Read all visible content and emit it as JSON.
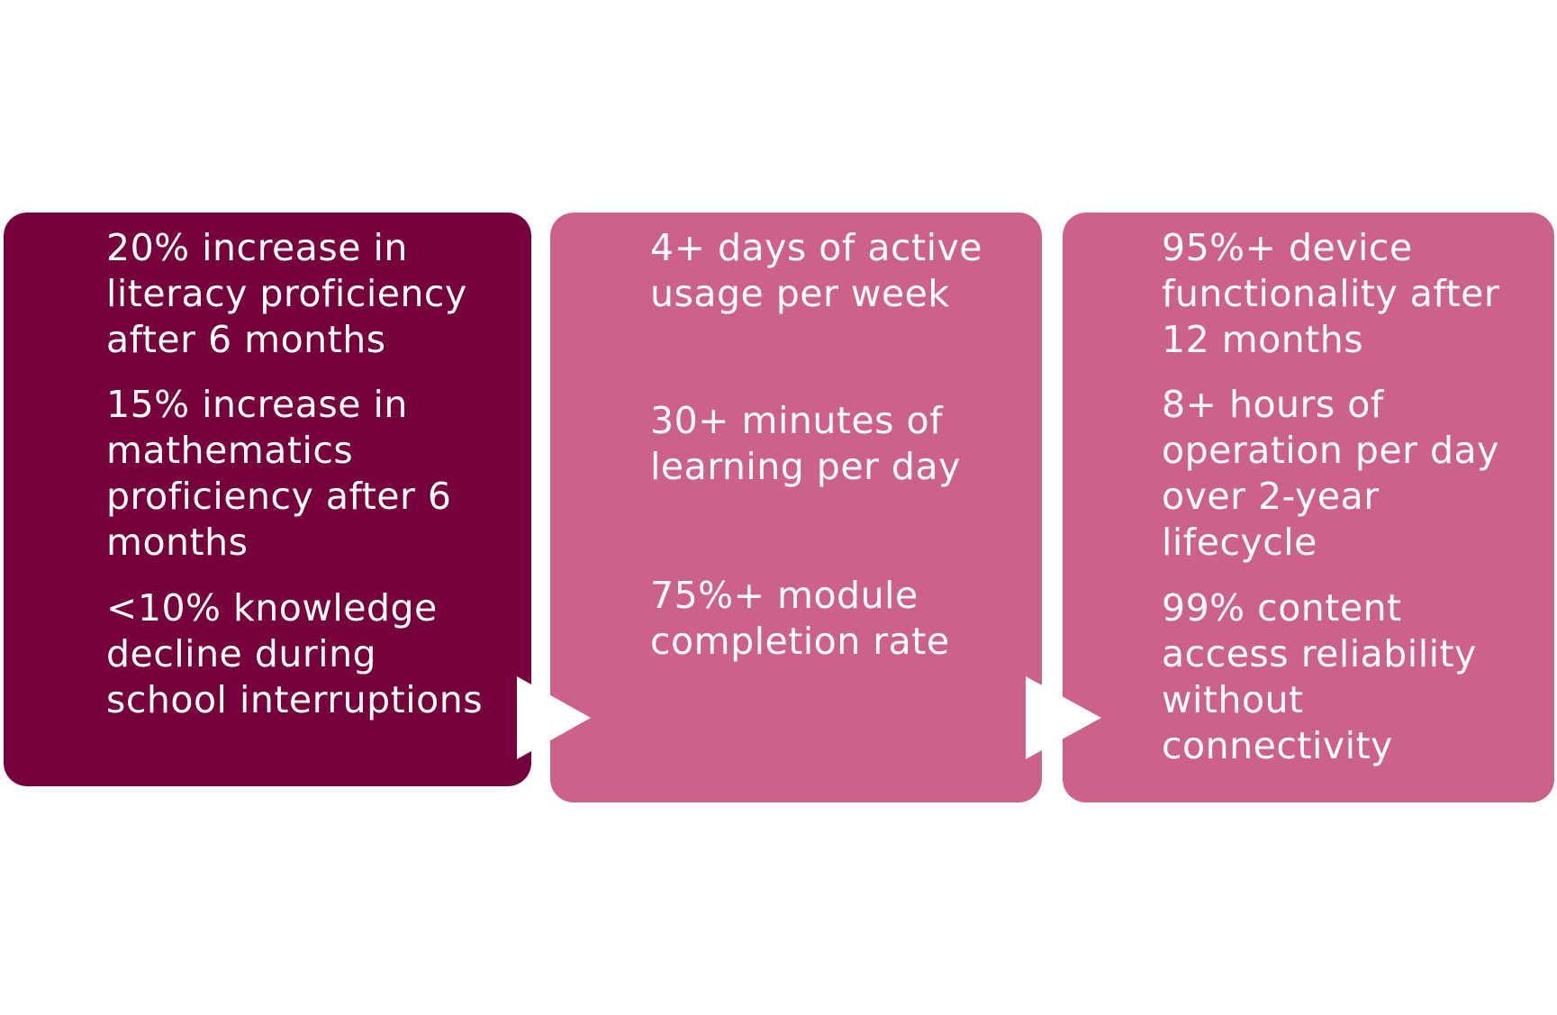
{
  "colors": {
    "panel_1": "#75003b",
    "panel_2": "#cc6289",
    "panel_3": "#cc6289",
    "text": "#ffffff",
    "arrow": "#ffffff"
  },
  "panels": [
    {
      "metrics": [
        "20% increase in\nliteracy proficiency\nafter 6 months",
        "15% increase in\nmathematics\nproficiency after 6\nmonths",
        "<10% knowledge\ndecline during\nschool interruptions"
      ]
    },
    {
      "metrics": [
        "4+ days of active\nusage per week",
        "30+ minutes of\nlearning per day",
        "75%+ module\ncompletion rate"
      ]
    },
    {
      "metrics": [
        "95%+ device\nfunctionality after\n12 months",
        "8+ hours of\noperation per day\nover 2-year\nlifecycle",
        "99% content\naccess reliability\nwithout\nconnectivity"
      ]
    }
  ],
  "connectors": [
    "chevron-arrow",
    "chevron-arrow"
  ]
}
